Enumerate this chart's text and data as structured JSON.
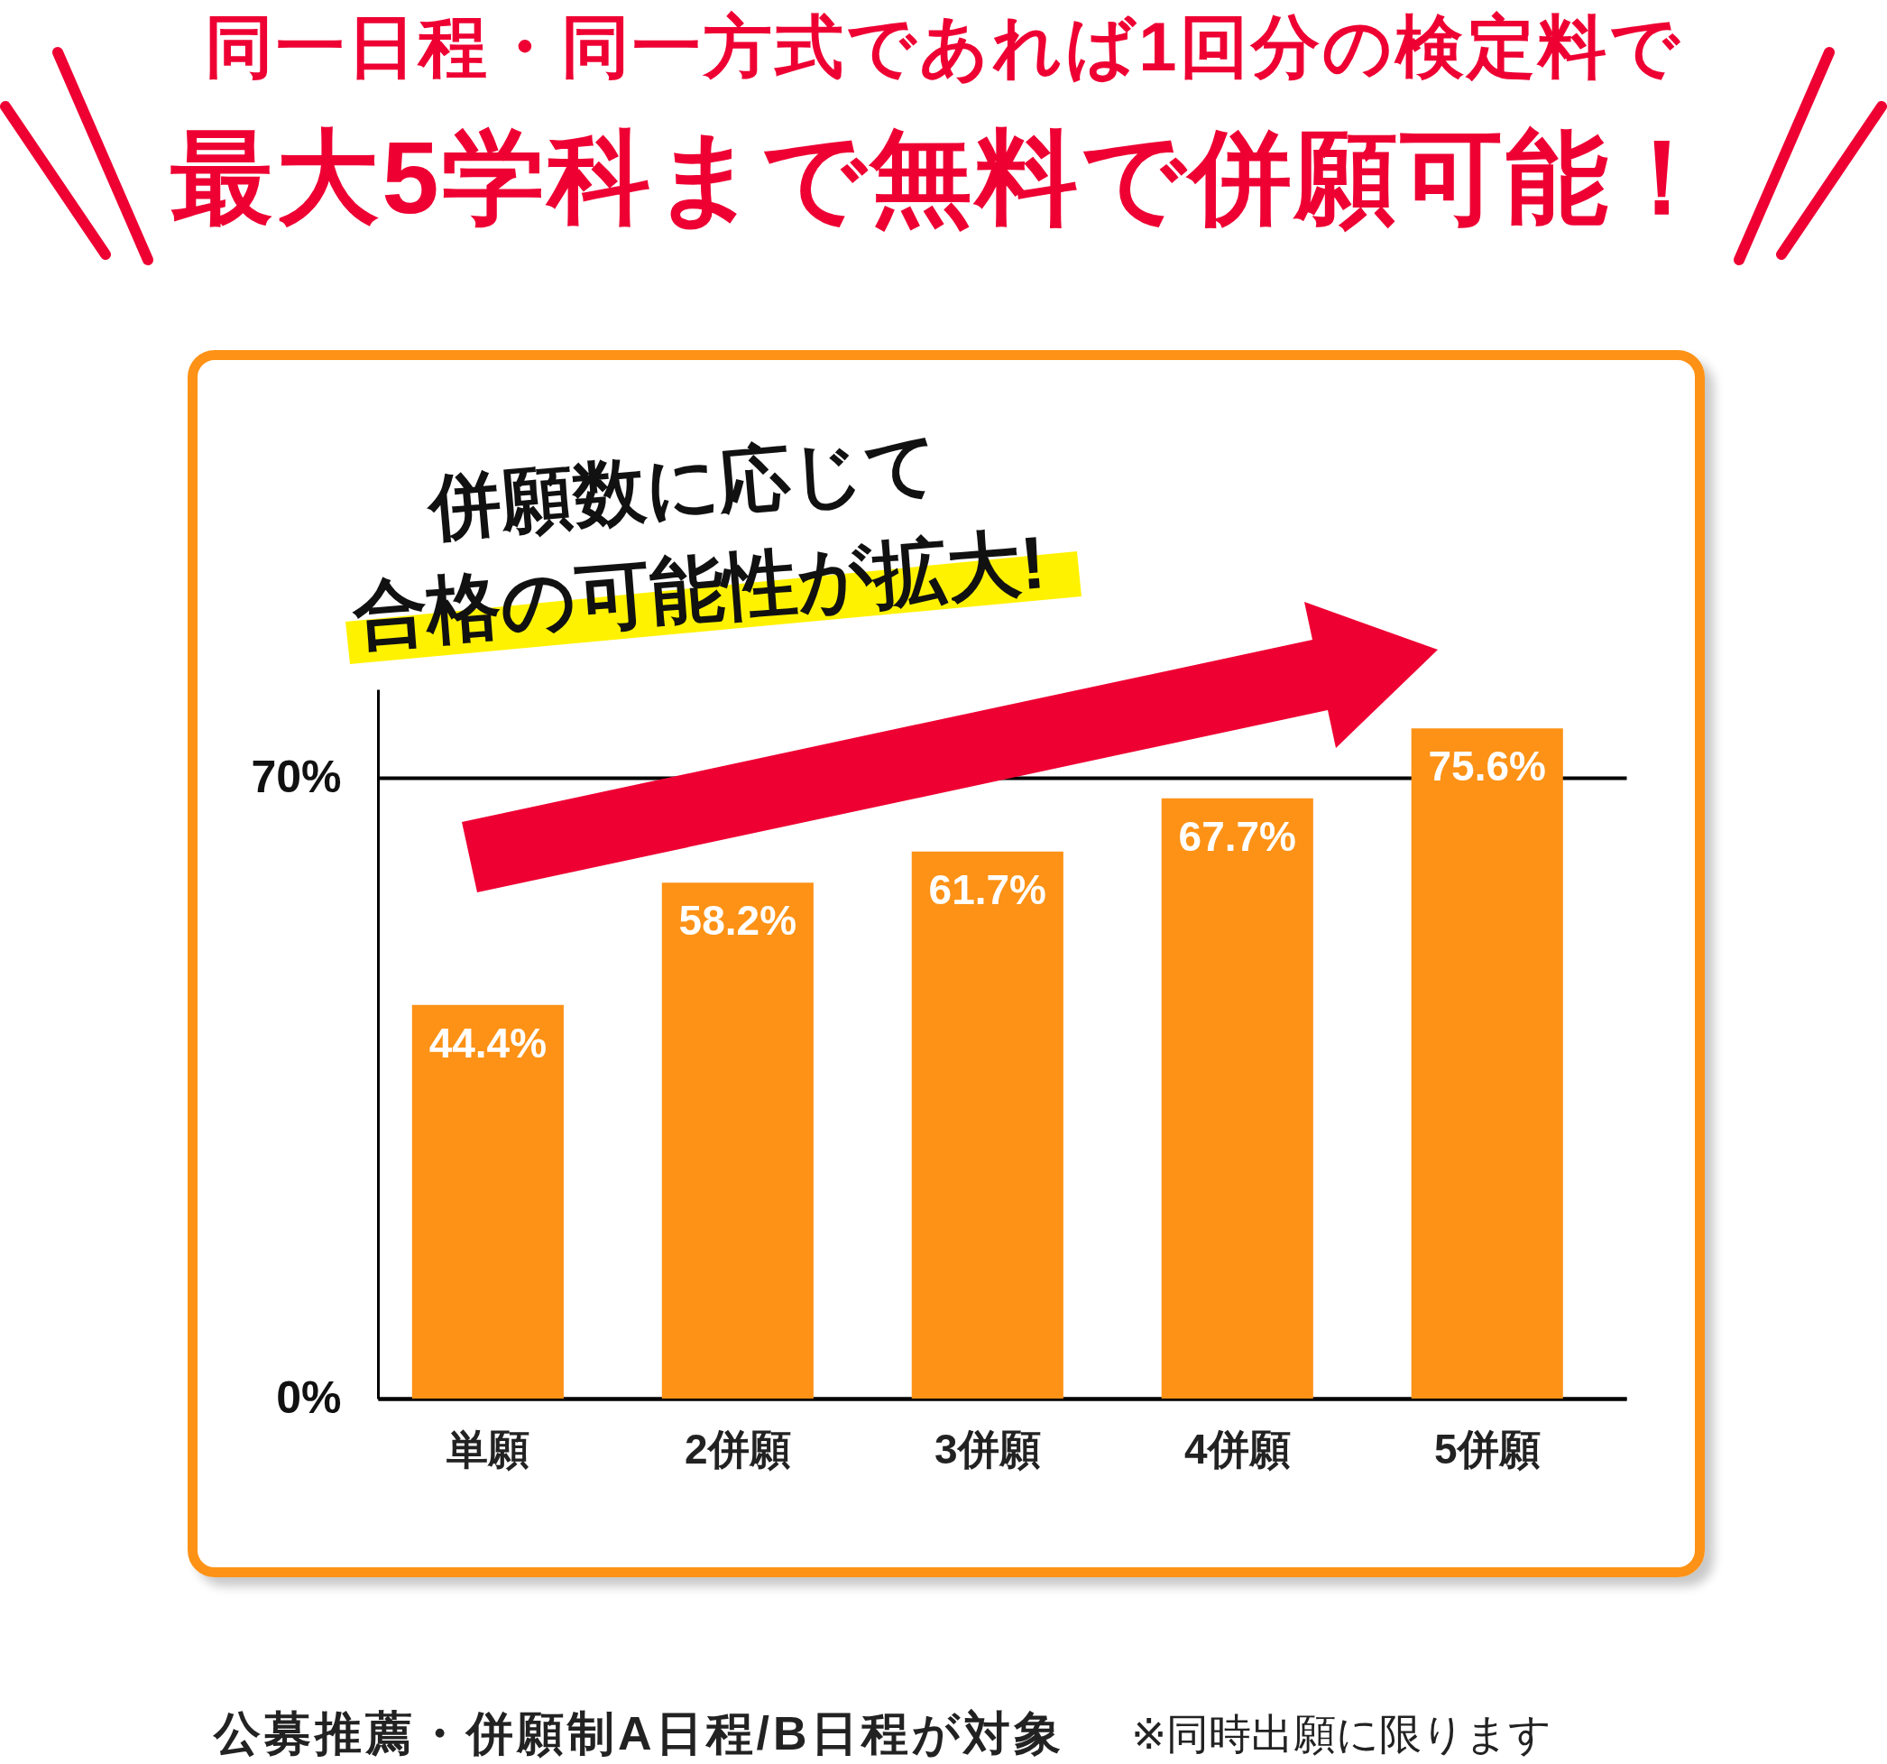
{
  "chart_data": {
    "type": "bar",
    "title": "同一日程・同一方式であれば1回分の検定料で",
    "subtitle": "最大5学科まで無料で併願可能！",
    "categories": [
      "単願",
      "2併願",
      "3併願",
      "4併願",
      "5併願"
    ],
    "values": [
      44.4,
      58.2,
      61.7,
      67.7,
      75.6
    ],
    "color": "#fd9216",
    "value_labels": [
      "44.4%",
      "58.2%",
      "61.7%",
      "67.7%",
      "75.6%"
    ],
    "ylim": [
      0,
      80
    ],
    "yticks": [
      {
        "value": 0,
        "label": "0%"
      },
      {
        "value": 70,
        "label": "70%"
      }
    ],
    "grid": "y",
    "annotations": [
      "併願数に応じて",
      "合格の可能性が拡大!",
      "公募推薦・併願制A日程/B日程が対象",
      "※同時出願に限ります"
    ]
  }
}
